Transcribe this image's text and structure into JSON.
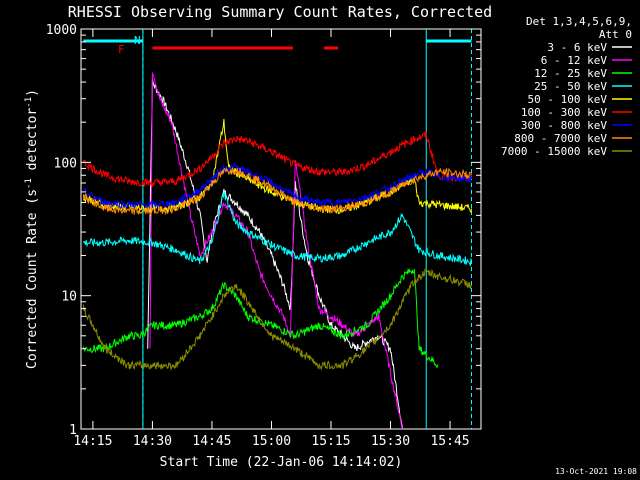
{
  "chart_data": {
    "type": "line",
    "title": "RHESSI Observing Summary Count Rates, Corrected",
    "xlabel": "Start Time (22-Jan-06 14:14:02)",
    "ylabel": "Corrected Count Rate (s",
    "ylabel_sup1": "-1",
    "ylabel_mid": " detector",
    "ylabel_sup2": "-1",
    "ylabel_end": ")",
    "y_scale": "log",
    "ylim": [
      1,
      1000
    ],
    "xlim_minutes": [
      14.2,
      15.88
    ],
    "x_ticks": [
      {
        "label": "14:15",
        "value": 14.25
      },
      {
        "label": "14:30",
        "value": 14.5
      },
      {
        "label": "14:45",
        "value": 14.75
      },
      {
        "label": "15:00",
        "value": 15.0
      },
      {
        "label": "15:15",
        "value": 15.25
      },
      {
        "label": "15:30",
        "value": 15.5
      },
      {
        "label": "15:45",
        "value": 15.75
      }
    ],
    "y_ticks": [
      {
        "label": "1",
        "value": 1
      },
      {
        "label": "10",
        "value": 10
      },
      {
        "label": "100",
        "value": 100
      },
      {
        "label": "1000",
        "value": 1000
      }
    ],
    "legend": {
      "placement": "right",
      "header1": "Det 1,3,4,5,6,9,",
      "header2": "Att 0"
    },
    "annotations": {
      "flare_flag": "F",
      "night_flag": "N"
    },
    "markers": {
      "night_bars": [
        [
          14.21,
          14.46
        ],
        [
          15.65,
          15.84
        ]
      ],
      "flare_bars": [
        [
          14.5,
          15.09
        ],
        [
          15.22,
          15.28
        ]
      ],
      "vertical_lines": [
        {
          "x": 14.46,
          "style": "solid"
        },
        {
          "x": 15.65,
          "style": "solid"
        },
        {
          "x": 14.46,
          "style": "dashed"
        },
        {
          "x": 15.84,
          "style": "dashed"
        }
      ]
    },
    "series": [
      {
        "name": "3 - 6 keV",
        "color": "#ffffff",
        "points": [
          [
            14.48,
            4
          ],
          [
            14.5,
            400
          ],
          [
            14.55,
            280
          ],
          [
            14.6,
            170
          ],
          [
            14.65,
            90
          ],
          [
            14.7,
            40
          ],
          [
            14.73,
            18
          ],
          [
            14.75,
            30
          ],
          [
            14.8,
            60
          ],
          [
            14.85,
            50
          ],
          [
            14.9,
            40
          ],
          [
            14.95,
            30
          ],
          [
            15.0,
            20
          ],
          [
            15.05,
            12
          ],
          [
            15.08,
            8
          ],
          [
            15.1,
            70
          ],
          [
            15.12,
            40
          ],
          [
            15.15,
            20
          ],
          [
            15.2,
            10
          ],
          [
            15.25,
            6
          ],
          [
            15.3,
            5
          ],
          [
            15.35,
            4
          ],
          [
            15.45,
            5
          ],
          [
            15.5,
            4
          ],
          [
            15.55,
            1
          ]
        ]
      },
      {
        "name": "6 - 12 keV",
        "color": "#ff00ff",
        "points": [
          [
            14.49,
            4
          ],
          [
            14.5,
            500
          ],
          [
            14.53,
            300
          ],
          [
            14.58,
            200
          ],
          [
            14.62,
            90
          ],
          [
            14.66,
            40
          ],
          [
            14.7,
            20
          ],
          [
            14.75,
            30
          ],
          [
            14.8,
            50
          ],
          [
            14.85,
            40
          ],
          [
            14.9,
            30
          ],
          [
            14.95,
            15
          ],
          [
            15.0,
            10
          ],
          [
            15.05,
            7
          ],
          [
            15.08,
            5
          ],
          [
            15.1,
            100
          ],
          [
            15.12,
            60
          ],
          [
            15.15,
            25
          ],
          [
            15.2,
            8
          ],
          [
            15.25,
            7
          ],
          [
            15.3,
            6
          ],
          [
            15.35,
            5
          ],
          [
            15.45,
            7
          ],
          [
            15.55,
            1
          ]
        ]
      },
      {
        "name": "12 - 25 keV",
        "color": "#00ff00",
        "points": [
          [
            14.21,
            4
          ],
          [
            14.3,
            4
          ],
          [
            14.4,
            5
          ],
          [
            14.45,
            5
          ],
          [
            14.5,
            6
          ],
          [
            14.6,
            6
          ],
          [
            14.7,
            7
          ],
          [
            14.75,
            8
          ],
          [
            14.8,
            12
          ],
          [
            14.85,
            10
          ],
          [
            14.9,
            7
          ],
          [
            15.0,
            6
          ],
          [
            15.1,
            5
          ],
          [
            15.2,
            6
          ],
          [
            15.3,
            5
          ],
          [
            15.4,
            6
          ],
          [
            15.5,
            10
          ],
          [
            15.55,
            14
          ],
          [
            15.6,
            16
          ],
          [
            15.62,
            4
          ],
          [
            15.7,
            3
          ]
        ]
      },
      {
        "name": "25 - 50 keV",
        "color": "#00ffff",
        "points": [
          [
            14.21,
            25
          ],
          [
            14.3,
            25
          ],
          [
            14.4,
            26
          ],
          [
            14.5,
            25
          ],
          [
            14.6,
            22
          ],
          [
            14.7,
            18
          ],
          [
            14.75,
            25
          ],
          [
            14.8,
            60
          ],
          [
            14.85,
            35
          ],
          [
            14.9,
            30
          ],
          [
            15.0,
            24
          ],
          [
            15.1,
            20
          ],
          [
            15.2,
            19
          ],
          [
            15.3,
            20
          ],
          [
            15.4,
            25
          ],
          [
            15.5,
            30
          ],
          [
            15.55,
            40
          ],
          [
            15.62,
            22
          ],
          [
            15.7,
            20
          ],
          [
            15.84,
            18
          ]
        ]
      },
      {
        "name": "50 - 100 keV",
        "color": "#ffff00",
        "points": [
          [
            14.21,
            55
          ],
          [
            14.3,
            48
          ],
          [
            14.4,
            46
          ],
          [
            14.5,
            45
          ],
          [
            14.6,
            46
          ],
          [
            14.7,
            55
          ],
          [
            14.75,
            70
          ],
          [
            14.8,
            200
          ],
          [
            14.82,
            90
          ],
          [
            14.9,
            75
          ],
          [
            15.0,
            60
          ],
          [
            15.1,
            50
          ],
          [
            15.2,
            45
          ],
          [
            15.3,
            44
          ],
          [
            15.4,
            50
          ],
          [
            15.5,
            60
          ],
          [
            15.6,
            75
          ],
          [
            15.62,
            50
          ],
          [
            15.7,
            48
          ],
          [
            15.84,
            45
          ]
        ]
      },
      {
        "name": "100 - 300 keV",
        "color": "#ff0000",
        "points": [
          [
            14.21,
            100
          ],
          [
            14.3,
            80
          ],
          [
            14.4,
            72
          ],
          [
            14.5,
            70
          ],
          [
            14.6,
            72
          ],
          [
            14.7,
            90
          ],
          [
            14.75,
            110
          ],
          [
            14.8,
            140
          ],
          [
            14.85,
            150
          ],
          [
            14.9,
            145
          ],
          [
            15.0,
            120
          ],
          [
            15.1,
            95
          ],
          [
            15.2,
            85
          ],
          [
            15.3,
            84
          ],
          [
            15.4,
            95
          ],
          [
            15.5,
            120
          ],
          [
            15.6,
            150
          ],
          [
            15.65,
            160
          ],
          [
            15.7,
            80
          ],
          [
            15.84,
            75
          ]
        ]
      },
      {
        "name": "300 - 800 keV",
        "color": "#0000ff",
        "points": [
          [
            14.21,
            60
          ],
          [
            14.3,
            50
          ],
          [
            14.4,
            48
          ],
          [
            14.5,
            48
          ],
          [
            14.6,
            50
          ],
          [
            14.7,
            62
          ],
          [
            14.75,
            75
          ],
          [
            14.8,
            90
          ],
          [
            14.85,
            92
          ],
          [
            14.9,
            85
          ],
          [
            15.0,
            70
          ],
          [
            15.1,
            55
          ],
          [
            15.2,
            50
          ],
          [
            15.3,
            50
          ],
          [
            15.4,
            55
          ],
          [
            15.5,
            65
          ],
          [
            15.6,
            80
          ],
          [
            15.65,
            85
          ],
          [
            15.7,
            78
          ],
          [
            15.84,
            75
          ]
        ]
      },
      {
        "name": "800 - 7000 keV",
        "color": "#ff8c00",
        "points": [
          [
            14.21,
            55
          ],
          [
            14.3,
            45
          ],
          [
            14.4,
            43
          ],
          [
            14.5,
            43
          ],
          [
            14.6,
            45
          ],
          [
            14.7,
            55
          ],
          [
            14.75,
            70
          ],
          [
            14.8,
            85
          ],
          [
            14.85,
            88
          ],
          [
            14.9,
            80
          ],
          [
            15.0,
            65
          ],
          [
            15.1,
            50
          ],
          [
            15.2,
            45
          ],
          [
            15.3,
            45
          ],
          [
            15.4,
            50
          ],
          [
            15.5,
            60
          ],
          [
            15.6,
            75
          ],
          [
            15.65,
            80
          ],
          [
            15.7,
            85
          ],
          [
            15.84,
            80
          ]
        ]
      },
      {
        "name": "7000 - 15000 keV",
        "color": "#8b8b00",
        "points": [
          [
            14.21,
            8
          ],
          [
            14.25,
            6
          ],
          [
            14.3,
            4
          ],
          [
            14.4,
            3
          ],
          [
            14.5,
            3
          ],
          [
            14.6,
            3
          ],
          [
            14.7,
            5
          ],
          [
            14.75,
            7
          ],
          [
            14.8,
            10
          ],
          [
            14.85,
            12
          ],
          [
            14.9,
            9
          ],
          [
            15.0,
            5
          ],
          [
            15.1,
            4
          ],
          [
            15.2,
            3
          ],
          [
            15.3,
            3
          ],
          [
            15.4,
            4
          ],
          [
            15.5,
            6
          ],
          [
            15.55,
            9
          ],
          [
            15.6,
            13
          ],
          [
            15.65,
            15
          ],
          [
            15.7,
            14
          ],
          [
            15.84,
            12
          ]
        ]
      }
    ]
  },
  "footer": {
    "timestamp": "13-Oct-2021 19:08"
  }
}
